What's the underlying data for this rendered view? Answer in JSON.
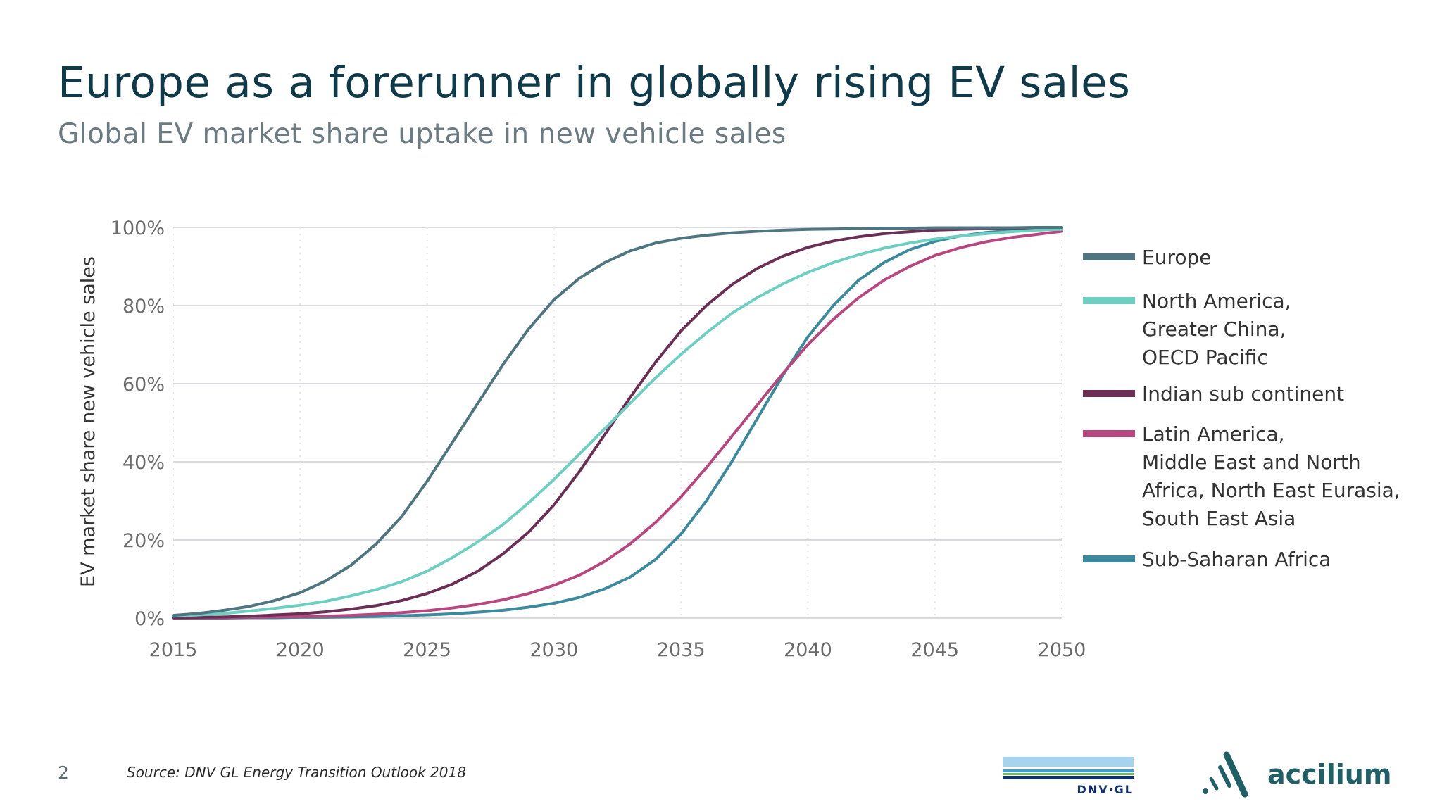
{
  "header": {
    "title": "Europe as a forerunner in globally rising EV sales",
    "subtitle": "Global EV market share uptake in new vehicle sales"
  },
  "footer": {
    "page_number": "2",
    "source": "Source: DNV GL Energy Transition Outlook 2018",
    "logos": [
      {
        "name": "DNV·GL",
        "icon": "dnv-gl-logo"
      },
      {
        "name": "accilium",
        "icon": "accilium-logo"
      }
    ]
  },
  "chart_data": {
    "type": "line",
    "title": "",
    "xlabel": "",
    "ylabel": "EV market share new vehicle sales",
    "xlim": [
      2015,
      2050
    ],
    "ylim": [
      0,
      100
    ],
    "x_ticks": [
      "2015",
      "2020",
      "2025",
      "2030",
      "2035",
      "2040",
      "2045",
      "2050"
    ],
    "y_ticks": [
      "0%",
      "20%",
      "40%",
      "60%",
      "80%",
      "100%"
    ],
    "grid": "horizontal",
    "legend_position": "right",
    "x": [
      2015,
      2016,
      2017,
      2018,
      2019,
      2020,
      2021,
      2022,
      2023,
      2024,
      2025,
      2026,
      2027,
      2028,
      2029,
      2030,
      2031,
      2032,
      2033,
      2034,
      2035,
      2036,
      2037,
      2038,
      2039,
      2040,
      2041,
      2042,
      2043,
      2044,
      2045,
      2046,
      2047,
      2048,
      2049,
      2050
    ],
    "series": [
      {
        "name": "Europe",
        "color": "#4e7580",
        "values": [
          0.7,
          1.2,
          2.0,
          3.0,
          4.5,
          6.5,
          9.5,
          13.5,
          19,
          26,
          35,
          45,
          55,
          65,
          74,
          81.5,
          87,
          91,
          94,
          96,
          97.2,
          98,
          98.6,
          99,
          99.3,
          99.5,
          99.6,
          99.7,
          99.8,
          99.8,
          99.9,
          99.9,
          99.9,
          99.9,
          100,
          100
        ]
      },
      {
        "name": "North America,\nGreater China,\nOECD Pacific",
        "color": "#6ccfc2",
        "values": [
          0.5,
          0.8,
          1.2,
          1.8,
          2.5,
          3.3,
          4.3,
          5.7,
          7.3,
          9.3,
          12,
          15.5,
          19.5,
          24,
          29.5,
          35.5,
          42,
          48.5,
          55,
          61.5,
          67.5,
          73,
          78,
          82,
          85.5,
          88.5,
          91,
          93,
          94.7,
          96,
          97,
          97.8,
          98.4,
          98.9,
          99.3,
          99.5
        ]
      },
      {
        "name": "Indian sub continent",
        "color": "#6b2f55",
        "values": [
          0.1,
          0.2,
          0.3,
          0.5,
          0.8,
          1.1,
          1.6,
          2.3,
          3.2,
          4.5,
          6.3,
          8.7,
          12,
          16.5,
          22,
          29,
          37.5,
          47,
          56.5,
          65.5,
          73.5,
          80,
          85.3,
          89.5,
          92.6,
          94.9,
          96.5,
          97.6,
          98.4,
          98.9,
          99.3,
          99.5,
          99.7,
          99.8,
          99.9,
          99.9
        ]
      },
      {
        "name": "Latin America,\nMiddle East and North\nAfrica, North East Eurasia,\nSouth East Asia",
        "color": "#b8467f",
        "values": [
          0,
          0.1,
          0.1,
          0.2,
          0.3,
          0.4,
          0.5,
          0.7,
          1.0,
          1.4,
          1.9,
          2.6,
          3.5,
          4.7,
          6.3,
          8.4,
          11,
          14.5,
          19,
          24.5,
          31,
          38.5,
          46.5,
          54.5,
          62.5,
          70,
          76.5,
          82,
          86.5,
          90,
          92.8,
          94.8,
          96.3,
          97.4,
          98.2,
          99
        ]
      },
      {
        "name": "Sub-Saharan Africa",
        "color": "#3b8a9e",
        "values": [
          0,
          0,
          0,
          0.1,
          0.1,
          0.2,
          0.2,
          0.3,
          0.4,
          0.6,
          0.8,
          1.1,
          1.5,
          2.0,
          2.8,
          3.8,
          5.3,
          7.5,
          10.5,
          15,
          21.5,
          30,
          40,
          51,
          62,
          72,
          80,
          86.5,
          91,
          94.3,
          96.4,
          97.8,
          98.7,
          99.2,
          99.5,
          99.7
        ]
      }
    ]
  }
}
